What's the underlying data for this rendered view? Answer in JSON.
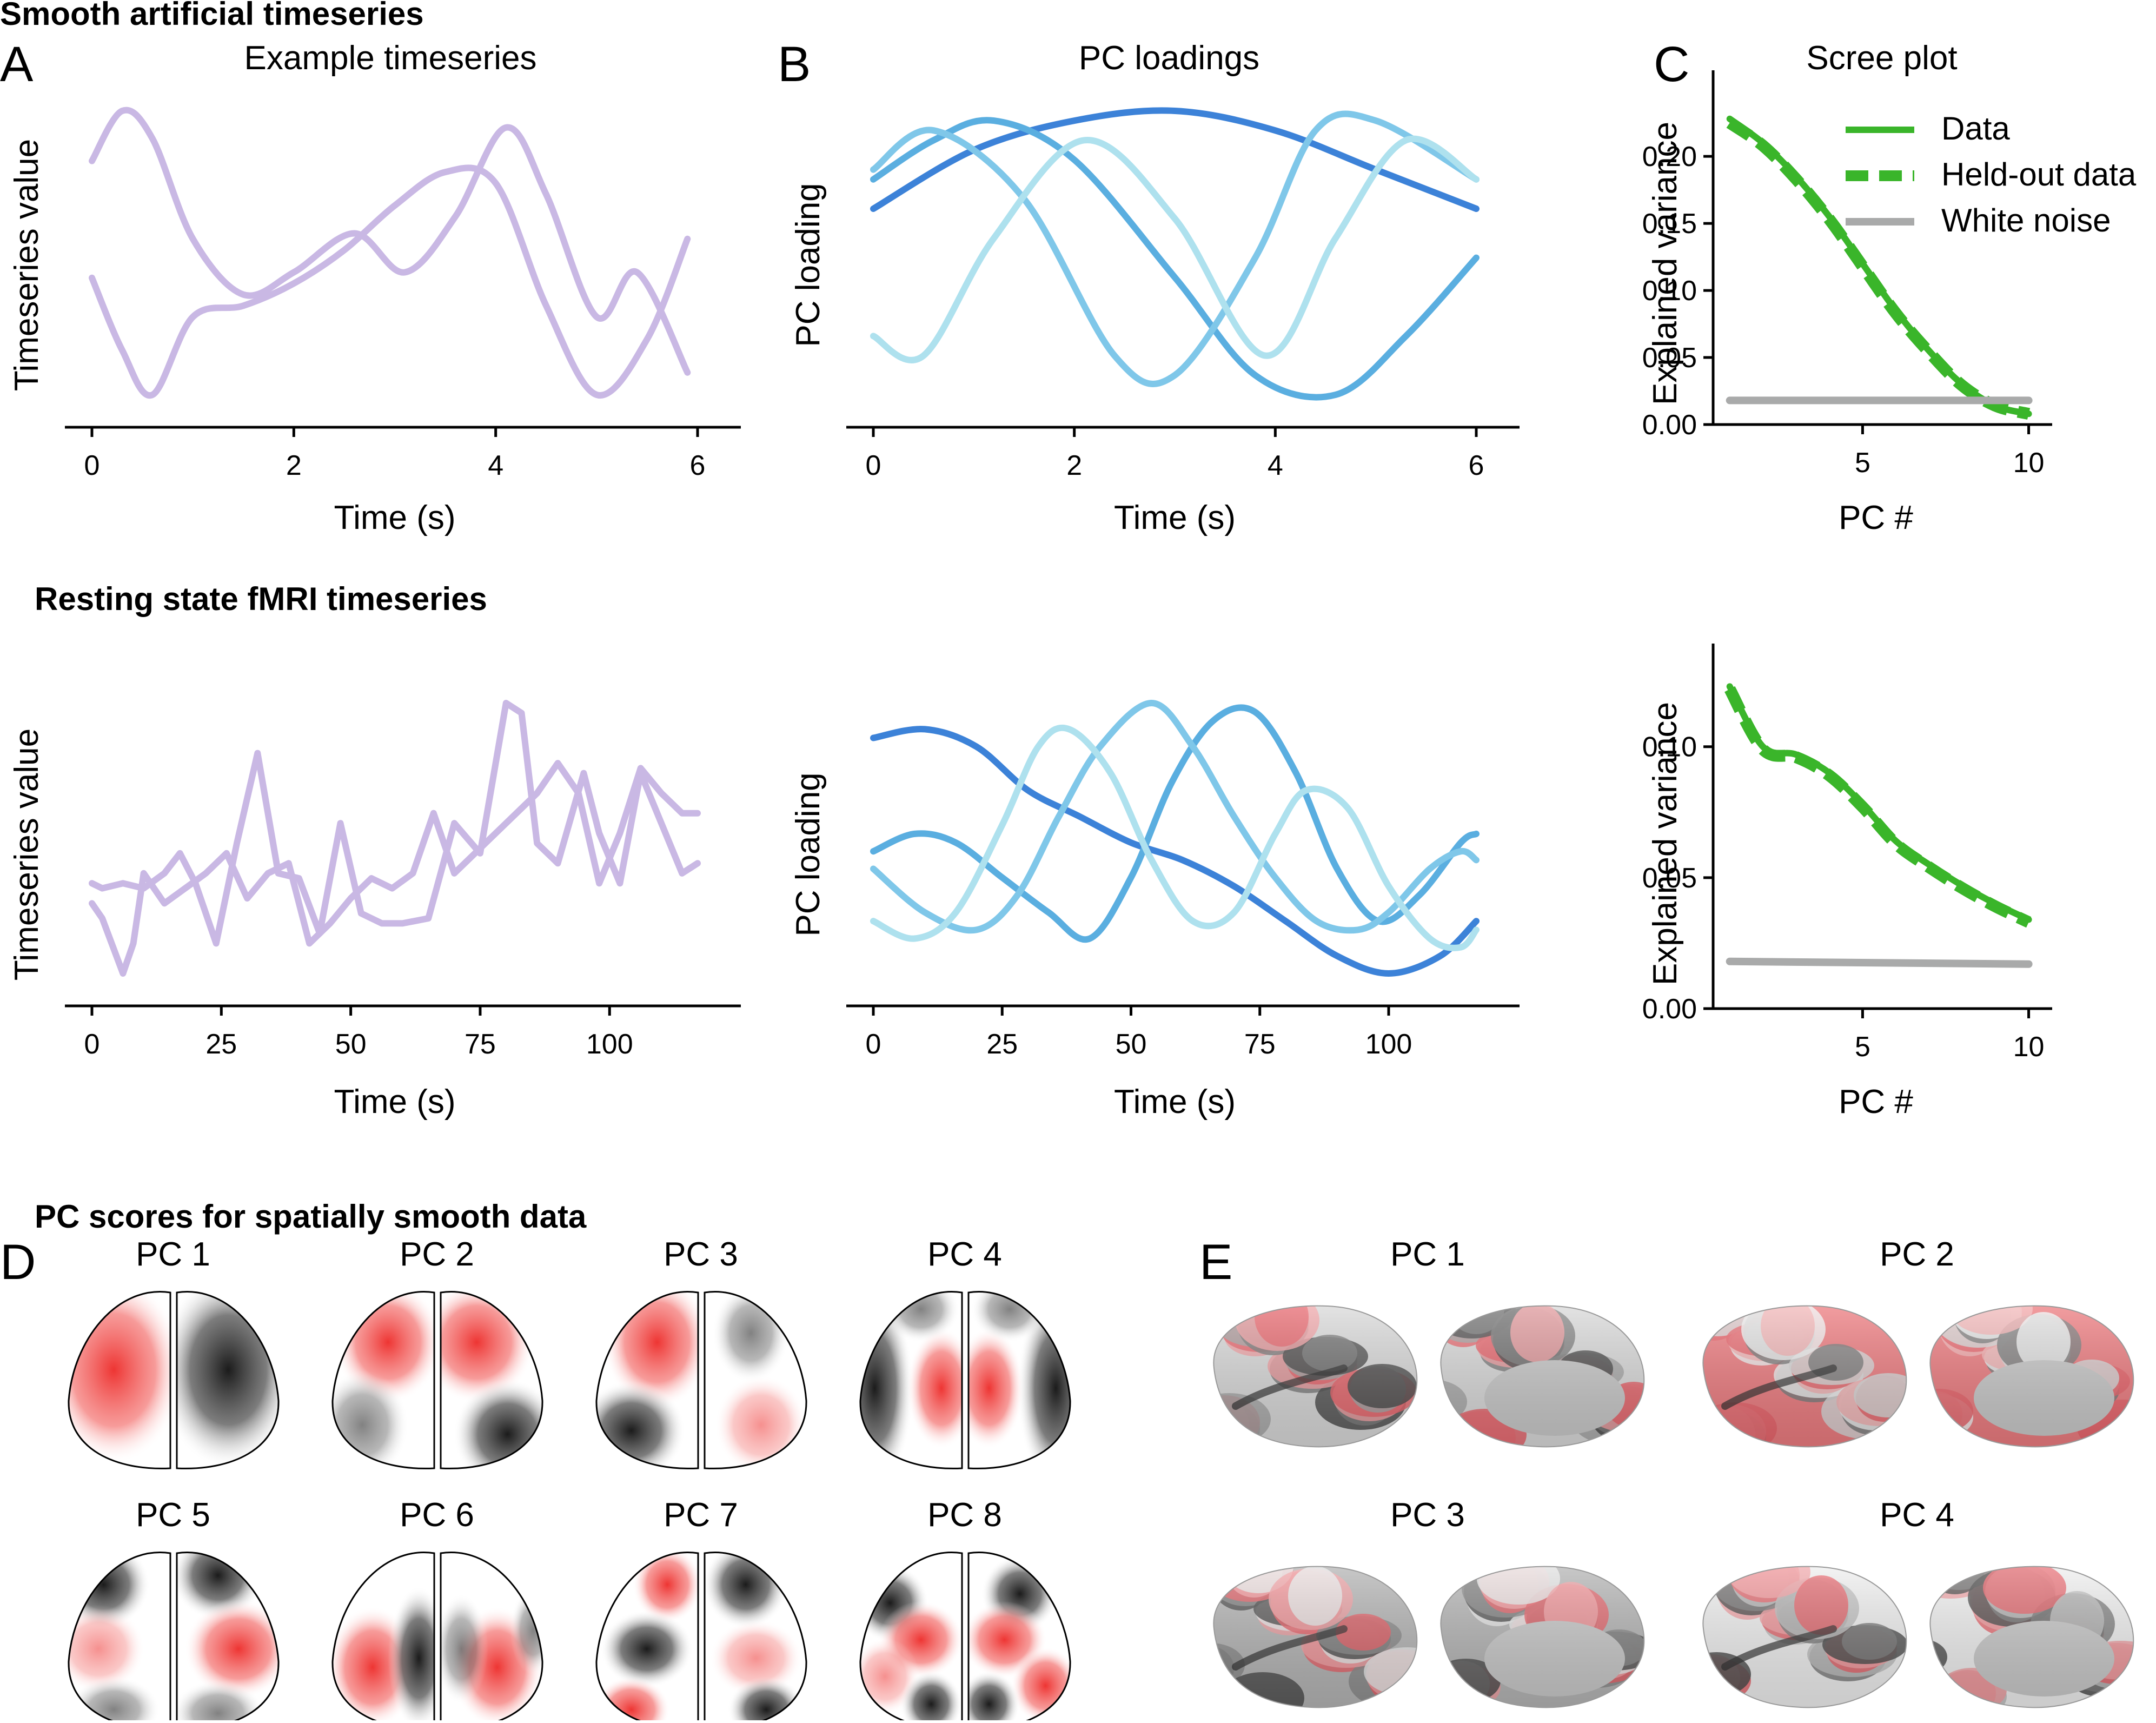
{
  "sections": {
    "smooth": "Smooth artificial timeseries",
    "fmri": "Resting state fMRI timeseries",
    "spatial": "PC scores for spatially smooth data"
  },
  "panel_labels": {
    "A": "A",
    "B": "B",
    "C": "C",
    "D": "D",
    "E": "E"
  },
  "titles": {
    "A": "Example timeseries",
    "B": "PC loadings",
    "C": "Scree plot"
  },
  "axis_labels": {
    "time": "Time (s)",
    "ts_value": "Timeseries value",
    "pc_loading": "PC loading",
    "explained_variance": "Explained variance",
    "pc_number": "PC #"
  },
  "legend": {
    "data": "Data",
    "heldout": "Held-out data",
    "noise": "White noise"
  },
  "colors": {
    "timeseries": "#c9b8e4",
    "pc1": "#3c82d8",
    "pc2": "#5aaee0",
    "pc3": "#7fc7e9",
    "pc4": "#aee1ee",
    "data": "#3ab52a",
    "noise": "#a9aaaa",
    "score_pos": "#ee3533",
    "score_neg": "#1e1e1e",
    "cortex_base": "#c9c9c9"
  },
  "mouse_panel_titles": [
    "PC 1",
    "PC 2",
    "PC 3",
    "PC 4",
    "PC 5",
    "PC 6",
    "PC 7",
    "PC 8"
  ],
  "brain_panel_titles": [
    "PC 1",
    "PC 2",
    "PC 3",
    "PC 4"
  ],
  "chart_data": [
    {
      "id": "A_top",
      "type": "line",
      "title": "Example timeseries",
      "xlabel": "Time (s)",
      "ylabel": "Timeseries value",
      "xlim": [
        0,
        6
      ],
      "xticks": [
        0,
        2,
        4,
        6
      ],
      "yticks_shown": false,
      "series": [
        {
          "x": [
            0,
            0.3,
            0.6,
            1.0,
            1.5,
            2.0,
            2.6,
            3.1,
            3.6,
            4.1,
            4.5,
            5.0,
            5.4,
            5.9
          ],
          "y": [
            2.0,
            2.45,
            2.2,
            1.3,
            0.8,
            1.0,
            1.35,
            1.0,
            1.5,
            2.3,
            1.7,
            0.6,
            1.0,
            0.1
          ]
        },
        {
          "x": [
            0,
            0.3,
            0.6,
            1.0,
            1.5,
            2.0,
            2.5,
            3.0,
            3.5,
            4.0,
            4.5,
            5.0,
            5.5,
            5.9
          ],
          "y": [
            0.95,
            0.3,
            -0.1,
            0.6,
            0.7,
            0.9,
            1.2,
            1.6,
            1.9,
            1.8,
            0.7,
            -0.1,
            0.4,
            1.3
          ]
        }
      ]
    },
    {
      "id": "B_top",
      "type": "line",
      "title": "PC loadings",
      "xlabel": "Time (s)",
      "ylabel": "PC loading",
      "xlim": [
        0,
        6
      ],
      "xticks": [
        0,
        2,
        4,
        6
      ],
      "yticks_shown": false,
      "series": [
        {
          "x": [
            0,
            1,
            2,
            3,
            4,
            5,
            6
          ],
          "y": [
            0.55,
            0.85,
            1.0,
            1.05,
            0.95,
            0.75,
            0.55
          ]
        },
        {
          "x": [
            0,
            0.6,
            1.2,
            2.0,
            3.0,
            3.8,
            4.6,
            5.3,
            6.0
          ],
          "y": [
            0.7,
            0.9,
            1.0,
            0.8,
            0.2,
            -0.3,
            -0.4,
            -0.1,
            0.3
          ]
        },
        {
          "x": [
            0,
            0.6,
            1.5,
            2.4,
            3.0,
            3.8,
            4.4,
            5.0,
            6.0
          ],
          "y": [
            0.75,
            0.95,
            0.6,
            -0.2,
            -0.3,
            0.3,
            0.95,
            1.0,
            0.7
          ]
        },
        {
          "x": [
            0,
            0.5,
            1.2,
            2.1,
            3.0,
            3.9,
            4.6,
            5.3,
            6.0
          ],
          "y": [
            -0.1,
            -0.2,
            0.4,
            0.9,
            0.5,
            -0.2,
            0.4,
            0.9,
            0.7
          ]
        }
      ]
    },
    {
      "id": "C_top",
      "type": "line",
      "title": "Scree plot",
      "xlabel": "PC #",
      "ylabel": "Explained variance",
      "xlim": [
        0.5,
        10.3
      ],
      "ylim": [
        0,
        0.24
      ],
      "xticks": [
        5,
        10
      ],
      "yticks": [
        0.0,
        0.05,
        0.1,
        0.15,
        0.2
      ],
      "ytick_labels": [
        "0.00",
        "0.05",
        "0.10",
        "0.15",
        "0.20"
      ],
      "legend_position": "top-right",
      "series": [
        {
          "name": "Data",
          "x": [
            1,
            2,
            3,
            4,
            5,
            6,
            7,
            8,
            9,
            10
          ],
          "y": [
            0.228,
            0.21,
            0.185,
            0.155,
            0.12,
            0.085,
            0.055,
            0.03,
            0.014,
            0.008
          ]
        },
        {
          "name": "Held-out data",
          "x": [
            1,
            2,
            3,
            4,
            5,
            6,
            7,
            8,
            9,
            10
          ],
          "y": [
            0.225,
            0.208,
            0.183,
            0.153,
            0.118,
            0.083,
            0.054,
            0.029,
            0.014,
            0.008
          ]
        },
        {
          "name": "White noise",
          "x": [
            1,
            10
          ],
          "y": [
            0.018,
            0.018
          ]
        }
      ]
    },
    {
      "id": "A_bottom",
      "type": "line",
      "xlabel": "Time (s)",
      "ylabel": "Timeseries value",
      "xlim": [
        0,
        117
      ],
      "xticks": [
        0,
        25,
        50,
        75,
        100
      ],
      "yticks_shown": false,
      "series": [
        {
          "x": [
            0,
            2,
            6,
            10,
            14,
            17,
            20,
            24,
            28,
            32,
            36,
            40,
            44,
            48,
            52,
            56,
            60,
            65,
            70,
            75,
            80,
            83,
            86,
            90,
            95,
            98,
            102,
            106,
            110,
            114,
            117
          ],
          "y": [
            0.9,
            0.85,
            0.9,
            0.85,
            1.0,
            1.2,
            0.9,
            0.3,
            1.3,
            2.2,
            1.0,
            0.95,
            0.4,
            1.5,
            0.6,
            0.5,
            0.5,
            0.55,
            1.5,
            1.2,
            2.7,
            2.6,
            1.3,
            1.1,
            2.0,
            1.4,
            0.9,
            2.0,
            1.5,
            1.0,
            1.1
          ]
        },
        {
          "x": [
            0,
            2,
            6,
            8,
            10,
            14,
            18,
            22,
            26,
            30,
            34,
            38,
            42,
            46,
            50,
            54,
            58,
            62,
            66,
            70,
            74,
            78,
            82,
            86,
            90,
            94,
            98,
            102,
            106,
            110,
            114,
            117
          ],
          "y": [
            0.7,
            0.55,
            0.0,
            0.3,
            1.0,
            0.7,
            0.85,
            1.0,
            1.2,
            0.75,
            1.0,
            1.1,
            0.3,
            0.5,
            0.75,
            0.95,
            0.85,
            1.0,
            1.6,
            1.0,
            1.2,
            1.4,
            1.6,
            1.8,
            2.1,
            1.8,
            0.9,
            1.4,
            2.05,
            1.8,
            1.6,
            1.6
          ]
        }
      ]
    },
    {
      "id": "B_bottom",
      "type": "line",
      "xlabel": "Time (s)",
      "ylabel": "PC loading",
      "xlim": [
        0,
        117
      ],
      "xticks": [
        0,
        25,
        50,
        75,
        100
      ],
      "yticks_shown": false,
      "series": [
        {
          "x": [
            0,
            10,
            20,
            30,
            40,
            50,
            60,
            70,
            80,
            90,
            100,
            110,
            117
          ],
          "y": [
            1.1,
            1.15,
            1.05,
            0.8,
            0.65,
            0.5,
            0.4,
            0.25,
            0.05,
            -0.15,
            -0.25,
            -0.15,
            0.05
          ]
        },
        {
          "x": [
            0,
            8,
            16,
            25,
            34,
            42,
            50,
            58,
            66,
            74,
            82,
            90,
            98,
            106,
            114,
            117
          ],
          "y": [
            0.45,
            0.55,
            0.5,
            0.3,
            0.1,
            -0.05,
            0.3,
            0.85,
            1.2,
            1.25,
            0.9,
            0.35,
            0.05,
            0.2,
            0.5,
            0.55
          ]
        },
        {
          "x": [
            0,
            10,
            20,
            28,
            36,
            44,
            54,
            62,
            70,
            78,
            86,
            94,
            100,
            108,
            114,
            117
          ],
          "y": [
            0.35,
            0.1,
            0.0,
            0.2,
            0.65,
            1.05,
            1.3,
            1.05,
            0.65,
            0.3,
            0.05,
            0.0,
            0.1,
            0.35,
            0.45,
            0.4
          ]
        },
        {
          "x": [
            0,
            8,
            16,
            25,
            32,
            38,
            46,
            54,
            62,
            70,
            78,
            84,
            92,
            100,
            108,
            114,
            117
          ],
          "y": [
            0.05,
            -0.05,
            0.1,
            0.6,
            1.05,
            1.15,
            0.9,
            0.4,
            0.05,
            0.1,
            0.55,
            0.8,
            0.7,
            0.25,
            -0.05,
            -0.1,
            0.0
          ]
        }
      ]
    },
    {
      "id": "C_bottom",
      "type": "line",
      "xlabel": "PC #",
      "ylabel": "Explained variance",
      "xlim": [
        0.5,
        10.3
      ],
      "ylim": [
        0,
        0.127
      ],
      "xticks": [
        5,
        10
      ],
      "yticks": [
        0.0,
        0.05,
        0.1
      ],
      "ytick_labels": [
        "0.00",
        "0.05",
        "0.10"
      ],
      "series": [
        {
          "name": "Data",
          "x": [
            1,
            2,
            3,
            4,
            5,
            6,
            7,
            8,
            9,
            10
          ],
          "y": [
            0.123,
            0.1,
            0.097,
            0.09,
            0.078,
            0.064,
            0.055,
            0.047,
            0.04,
            0.034
          ]
        },
        {
          "name": "Held-out data",
          "x": [
            1,
            2,
            3,
            4,
            5,
            6,
            7,
            8,
            9,
            10
          ],
          "y": [
            0.122,
            0.099,
            0.096,
            0.089,
            0.077,
            0.063,
            0.054,
            0.046,
            0.039,
            0.033
          ]
        },
        {
          "name": "White noise",
          "x": [
            1,
            10
          ],
          "y": [
            0.018,
            0.017
          ]
        }
      ]
    }
  ]
}
